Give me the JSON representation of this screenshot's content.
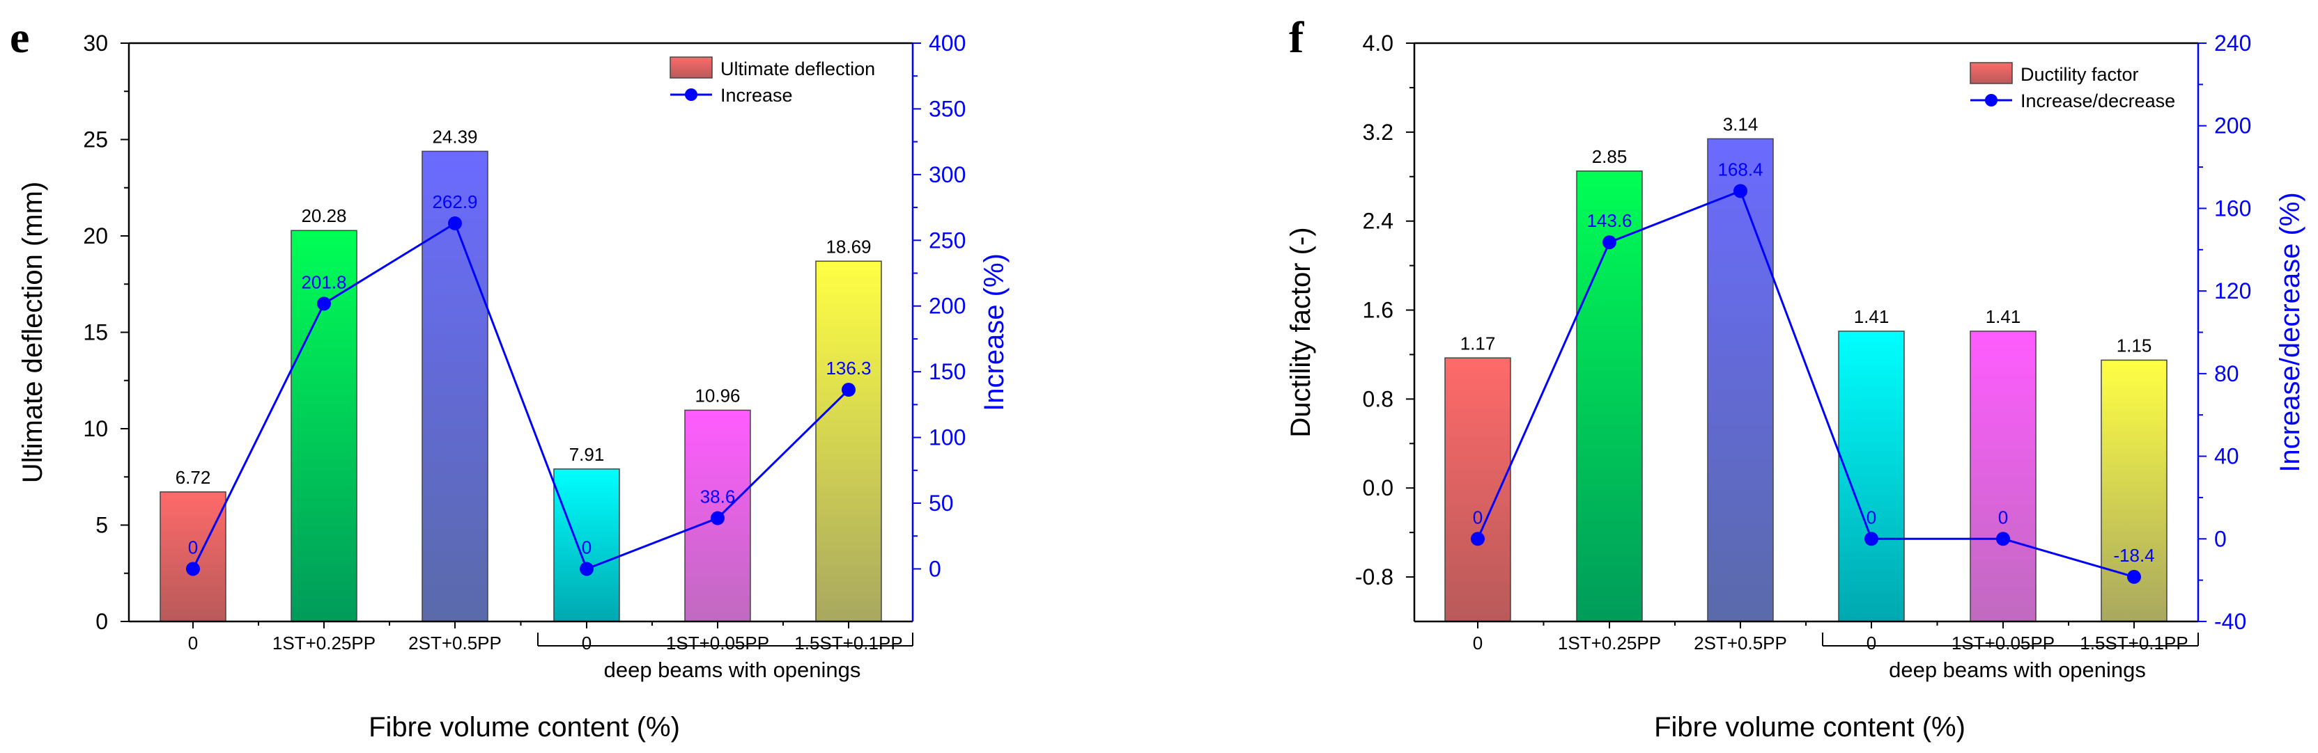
{
  "chart_data": [
    {
      "type": "bar",
      "panel_label": "e",
      "categories": [
        "0",
        "1ST+0.25PP",
        "2ST+0.5PP",
        "0",
        "1ST+0.05PP",
        "1.5ST+0.1PP"
      ],
      "group_label": "deep beams with openings",
      "group_categories": [
        3,
        4,
        5
      ],
      "xlabel": "Fibre volume content (%)",
      "ylabel": "Ultimate deflection (mm)",
      "y2label": "Increase (%)",
      "ylim": [
        0,
        30
      ],
      "yticks": [
        0,
        5,
        10,
        15,
        20,
        25,
        30
      ],
      "y2lim": [
        -40,
        400
      ],
      "y2ticks": [
        0,
        50,
        100,
        150,
        200,
        250,
        300,
        350,
        400
      ],
      "series": [
        {
          "name": "Ultimate deflection",
          "kind": "bar",
          "values": [
            6.72,
            20.28,
            24.39,
            7.91,
            10.96,
            18.69
          ],
          "labels": [
            "6.72",
            "20.28",
            "24.39",
            "7.91",
            "10.96",
            "18.69"
          ]
        },
        {
          "name": "Increase",
          "kind": "line",
          "axis": "right",
          "values": [
            0,
            201.8,
            262.9,
            0,
            38.6,
            136.3
          ],
          "labels": [
            "0",
            "201.8",
            "262.9",
            "0",
            "38.6",
            "136.3"
          ]
        }
      ],
      "legend": "top-right"
    },
    {
      "type": "bar",
      "panel_label": "f",
      "categories": [
        "0",
        "1ST+0.25PP",
        "2ST+0.5PP",
        "0",
        "1ST+0.05PP",
        "1.5ST+0.1PP"
      ],
      "group_label": "deep beams with openings",
      "group_categories": [
        3,
        4,
        5
      ],
      "xlabel": "Fibre volume content (%)",
      "ylabel": "Ductility factor (-)",
      "y2label": "Increase/decrease (%)",
      "ylim": [
        -1.2,
        4.0
      ],
      "yticks": [
        "-0.8",
        "0.0",
        "0.8",
        "1.6",
        "2.4",
        "3.2",
        "4.0"
      ],
      "y2lim": [
        -40,
        240
      ],
      "y2ticks": [
        -40,
        0,
        40,
        80,
        120,
        160,
        200,
        240
      ],
      "series": [
        {
          "name": "Ductility factor",
          "kind": "bar",
          "values": [
            1.17,
            2.85,
            3.14,
            1.41,
            1.41,
            1.15
          ],
          "labels": [
            "1.17",
            "2.85",
            "3.14",
            "1.41",
            "1.41",
            "1.15"
          ]
        },
        {
          "name": "Increase/decrease",
          "kind": "line",
          "axis": "right",
          "values": [
            0,
            143.6,
            168.4,
            0,
            0,
            -18.4
          ],
          "labels": [
            "0",
            "143.6",
            "168.4",
            "0",
            "0",
            "-18.4"
          ]
        }
      ],
      "legend": "top-right"
    }
  ],
  "colors": {
    "bars": [
      [
        "#ff6a6a",
        "#b85a5a"
      ],
      [
        "#00ff55",
        "#009b5a"
      ],
      [
        "#6b6bff",
        "#5a6aaa"
      ],
      [
        "#00ffff",
        "#00a8b0"
      ],
      [
        "#ff5cff",
        "#c06ac0"
      ],
      [
        "#ffff44",
        "#a8a860"
      ]
    ],
    "line": "#0000ff",
    "axis": "#000000"
  }
}
